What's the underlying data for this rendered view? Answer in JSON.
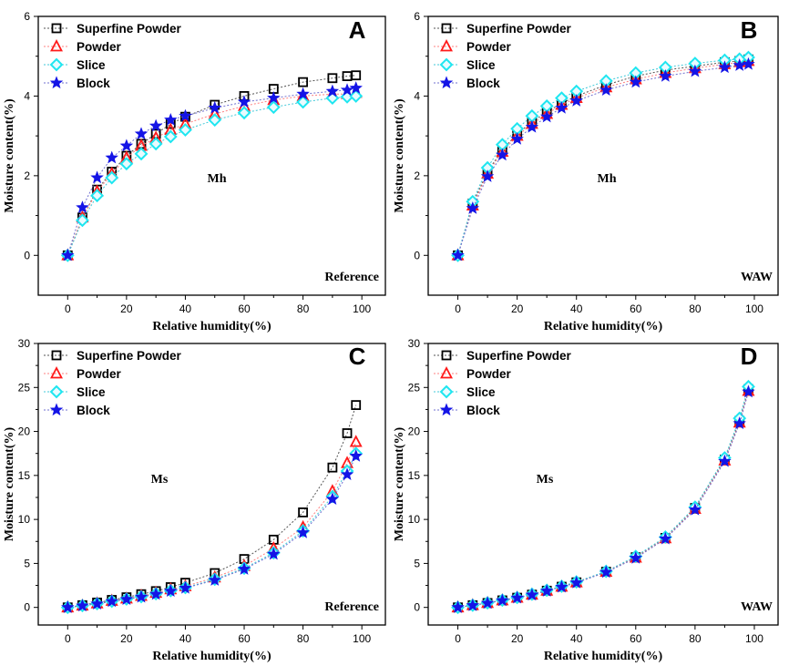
{
  "colors": {
    "superfine": "#000000",
    "powder": "#ff1a1a",
    "slice": "#1ee6f0",
    "block": "#1414e6",
    "line_superfine": "#555555",
    "line_powder": "#ff8080",
    "line_slice": "#40c8d8",
    "line_block": "#7070d0"
  },
  "chart_data": [
    {
      "type": "line",
      "panel": "A",
      "annotation": "Mh",
      "corner_label": "Reference",
      "xlabel": "Relative humidity(%)",
      "ylabel": "Moisture content(%)",
      "xlim": [
        -10,
        108
      ],
      "ylim": [
        -1,
        6
      ],
      "xticks": [
        "0",
        "20",
        "40",
        "60",
        "80",
        "100"
      ],
      "yticks": [
        "0",
        "2",
        "4",
        "6"
      ],
      "xtick_values": [
        0,
        20,
        40,
        60,
        80,
        100
      ],
      "ytick_values": [
        0,
        2,
        4,
        6
      ],
      "legend": [
        "Superfine Powder",
        "Powder",
        "Slice",
        "Block"
      ],
      "x": [
        0,
        5,
        10,
        15,
        20,
        25,
        30,
        35,
        40,
        50,
        60,
        70,
        80,
        90,
        95,
        98
      ],
      "series": [
        {
          "name": "Superfine Powder",
          "marker": "square",
          "values": [
            0,
            0.95,
            1.65,
            2.1,
            2.5,
            2.8,
            3.05,
            3.3,
            3.48,
            3.78,
            4.0,
            4.18,
            4.35,
            4.45,
            4.5,
            4.52
          ]
        },
        {
          "name": "Powder",
          "marker": "triangle",
          "values": [
            0,
            0.95,
            1.6,
            2.05,
            2.45,
            2.75,
            2.95,
            3.15,
            3.3,
            3.55,
            3.75,
            3.9,
            4.0,
            4.05,
            4.05,
            4.08
          ]
        },
        {
          "name": "Slice",
          "marker": "diamond",
          "values": [
            0,
            0.88,
            1.5,
            1.95,
            2.3,
            2.55,
            2.8,
            2.98,
            3.15,
            3.4,
            3.58,
            3.72,
            3.85,
            3.95,
            3.98,
            4.0
          ]
        },
        {
          "name": "Block",
          "marker": "star",
          "values": [
            0,
            1.2,
            1.95,
            2.45,
            2.75,
            3.05,
            3.25,
            3.4,
            3.5,
            3.7,
            3.85,
            3.95,
            4.05,
            4.12,
            4.15,
            4.2
          ]
        }
      ]
    },
    {
      "type": "line",
      "panel": "B",
      "annotation": "Mh",
      "corner_label": "WAW",
      "xlabel": "Relative humidity(%)",
      "ylabel": "Moisture content(%)",
      "xlim": [
        -10,
        108
      ],
      "ylim": [
        -1,
        6
      ],
      "xticks": [
        "0",
        "20",
        "40",
        "60",
        "80",
        "100"
      ],
      "yticks": [
        "0",
        "2",
        "4",
        "6"
      ],
      "xtick_values": [
        0,
        20,
        40,
        60,
        80,
        100
      ],
      "ytick_values": [
        0,
        2,
        4,
        6
      ],
      "legend": [
        "Superfine Powder",
        "Powder",
        "Slice",
        "Block"
      ],
      "x": [
        0,
        5,
        10,
        15,
        20,
        25,
        30,
        35,
        40,
        50,
        60,
        70,
        80,
        90,
        95,
        98
      ],
      "series": [
        {
          "name": "Superfine Powder",
          "marker": "square",
          "values": [
            0,
            1.3,
            2.1,
            2.65,
            3.05,
            3.35,
            3.6,
            3.82,
            4.0,
            4.28,
            4.5,
            4.65,
            4.75,
            4.85,
            4.88,
            4.92
          ]
        },
        {
          "name": "Powder",
          "marker": "triangle",
          "values": [
            0,
            1.25,
            2.05,
            2.6,
            3.0,
            3.3,
            3.55,
            3.78,
            3.95,
            4.22,
            4.42,
            4.58,
            4.7,
            4.8,
            4.85,
            4.88
          ]
        },
        {
          "name": "Slice",
          "marker": "diamond",
          "values": [
            0,
            1.35,
            2.2,
            2.78,
            3.18,
            3.5,
            3.75,
            3.95,
            4.12,
            4.38,
            4.58,
            4.72,
            4.82,
            4.9,
            4.93,
            4.97
          ]
        },
        {
          "name": "Block",
          "marker": "star",
          "values": [
            0,
            1.18,
            1.98,
            2.52,
            2.92,
            3.22,
            3.48,
            3.7,
            3.88,
            4.15,
            4.35,
            4.5,
            4.62,
            4.72,
            4.77,
            4.8
          ]
        }
      ]
    },
    {
      "type": "line",
      "panel": "C",
      "annotation": "Ms",
      "corner_label": "Reference",
      "xlabel": "Relative humidity(%)",
      "ylabel": "Moisture content(%)",
      "xlim": [
        -10,
        108
      ],
      "ylim": [
        -2,
        30
      ],
      "xticks": [
        "0",
        "20",
        "40",
        "60",
        "80",
        "100"
      ],
      "yticks": [
        "0",
        "5",
        "10",
        "15",
        "20",
        "25",
        "30"
      ],
      "xtick_values": [
        0,
        20,
        40,
        60,
        80,
        100
      ],
      "ytick_values": [
        0,
        5,
        10,
        15,
        20,
        25,
        30
      ],
      "legend": [
        "Superfine Powder",
        "Powder",
        "Slice",
        "Block"
      ],
      "x": [
        0,
        5,
        10,
        15,
        20,
        25,
        30,
        35,
        40,
        50,
        60,
        70,
        80,
        90,
        95,
        98
      ],
      "series": [
        {
          "name": "Superfine Powder",
          "marker": "square",
          "values": [
            0,
            0.25,
            0.55,
            0.85,
            1.15,
            1.5,
            1.85,
            2.3,
            2.8,
            3.9,
            5.5,
            7.7,
            10.8,
            15.9,
            19.8,
            23.0
          ]
        },
        {
          "name": "Powder",
          "marker": "triangle",
          "values": [
            0,
            0.2,
            0.45,
            0.75,
            1.0,
            1.3,
            1.65,
            2.05,
            2.4,
            3.4,
            4.7,
            6.7,
            9.1,
            13.2,
            16.4,
            18.8
          ]
        },
        {
          "name": "Slice",
          "marker": "diamond",
          "values": [
            0,
            0.2,
            0.42,
            0.7,
            0.95,
            1.22,
            1.55,
            1.9,
            2.25,
            3.2,
            4.45,
            6.2,
            8.7,
            12.6,
            15.5,
            17.5
          ]
        },
        {
          "name": "Block",
          "marker": "star",
          "values": [
            0,
            0.18,
            0.4,
            0.68,
            0.92,
            1.18,
            1.5,
            1.85,
            2.2,
            3.1,
            4.35,
            6.05,
            8.5,
            12.3,
            15.1,
            17.2
          ]
        }
      ]
    },
    {
      "type": "line",
      "panel": "D",
      "annotation": "Ms",
      "corner_label": "WAW",
      "xlabel": "Relative humidity(%)",
      "ylabel": "Moisture content(%)",
      "xlim": [
        -10,
        108
      ],
      "ylim": [
        -2,
        30
      ],
      "xticks": [
        "0",
        "20",
        "40",
        "60",
        "80",
        "100"
      ],
      "yticks": [
        "0",
        "5",
        "10",
        "15",
        "20",
        "25",
        "30"
      ],
      "xtick_values": [
        0,
        20,
        40,
        60,
        80,
        100
      ],
      "ytick_values": [
        0,
        5,
        10,
        15,
        20,
        25,
        30
      ],
      "legend": [
        "Superfine Powder",
        "Powder",
        "Slice",
        "Block"
      ],
      "x": [
        0,
        5,
        10,
        15,
        20,
        25,
        30,
        35,
        40,
        50,
        60,
        70,
        80,
        90,
        95,
        98
      ],
      "series": [
        {
          "name": "Superfine Powder",
          "marker": "square",
          "values": [
            0,
            0.25,
            0.5,
            0.8,
            1.1,
            1.45,
            1.9,
            2.35,
            2.85,
            4.05,
            5.7,
            7.9,
            11.3,
            16.8,
            21.2,
            24.8
          ]
        },
        {
          "name": "Powder",
          "marker": "triangle",
          "values": [
            0,
            0.25,
            0.5,
            0.8,
            1.1,
            1.45,
            1.9,
            2.35,
            2.85,
            4.05,
            5.65,
            7.85,
            11.2,
            16.7,
            21.0,
            24.6
          ]
        },
        {
          "name": "Slice",
          "marker": "diamond",
          "values": [
            0,
            0.25,
            0.52,
            0.82,
            1.12,
            1.5,
            1.95,
            2.4,
            2.9,
            4.1,
            5.8,
            8.0,
            11.4,
            17.0,
            21.5,
            25.1
          ]
        },
        {
          "name": "Block",
          "marker": "star",
          "values": [
            0,
            0.22,
            0.48,
            0.78,
            1.08,
            1.42,
            1.86,
            2.32,
            2.8,
            4.0,
            5.6,
            7.8,
            11.1,
            16.6,
            20.9,
            24.5
          ]
        }
      ]
    }
  ]
}
